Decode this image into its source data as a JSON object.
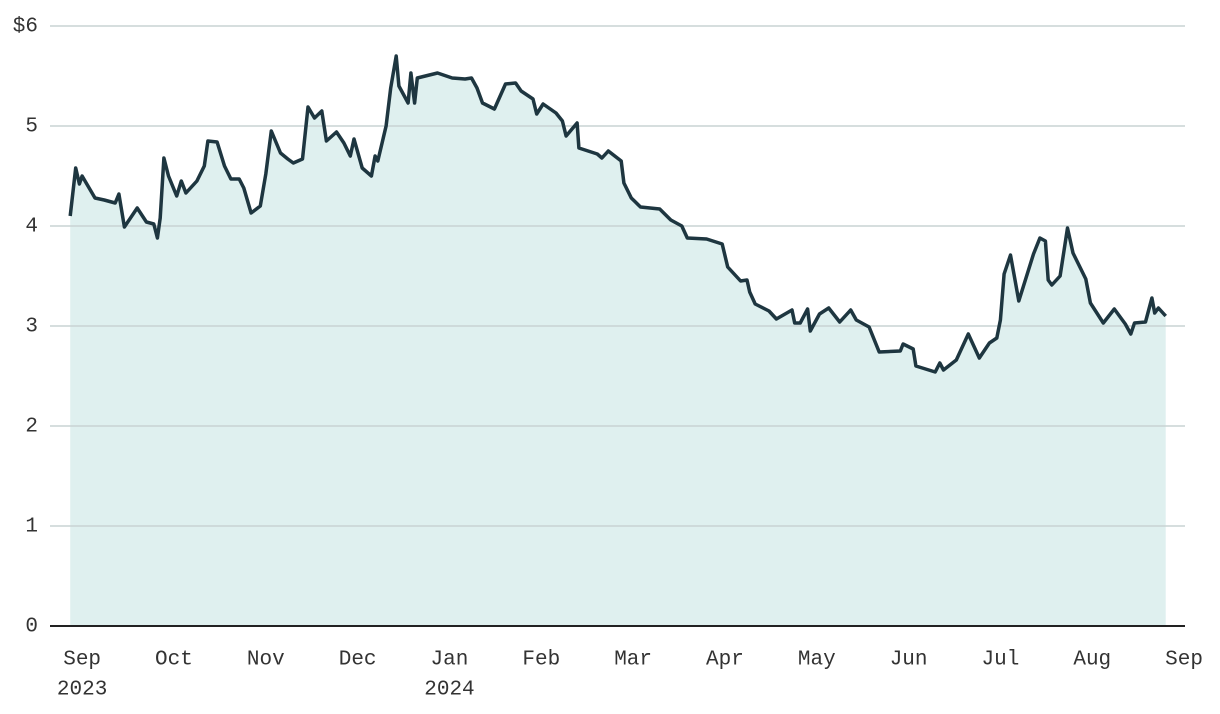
{
  "chart_data": {
    "type": "area",
    "x": [
      -0.13,
      -0.07,
      -0.03,
      0,
      0.14,
      0.24,
      0.36,
      0.4,
      0.46,
      0.6,
      0.7,
      0.78,
      0.82,
      0.85,
      0.89,
      0.94,
      1.03,
      1.08,
      1.13,
      1.25,
      1.33,
      1.37,
      1.47,
      1.55,
      1.62,
      1.71,
      1.76,
      1.84,
      1.94,
      2.0,
      2.06,
      2.16,
      2.24,
      2.3,
      2.4,
      2.46,
      2.53,
      2.61,
      2.66,
      2.77,
      2.85,
      2.92,
      2.96,
      3.05,
      3.15,
      3.19,
      3.22,
      3.31,
      3.36,
      3.42,
      3.45,
      3.55,
      3.58,
      3.62,
      3.65,
      3.87,
      4.03,
      4.17,
      4.24,
      4.3,
      4.36,
      4.49,
      4.61,
      4.72,
      4.78,
      4.91,
      4.95,
      5.02,
      5.16,
      5.23,
      5.27,
      5.39,
      5.41,
      5.61,
      5.66,
      5.73,
      5.87,
      5.9,
      5.98,
      6.08,
      6.29,
      6.41,
      6.53,
      6.59,
      6.8,
      6.97,
      7.03,
      7.17,
      7.24,
      7.27,
      7.33,
      7.48,
      7.56,
      7.73,
      7.76,
      7.82,
      7.9,
      7.93,
      8.03,
      8.13,
      8.25,
      8.37,
      8.43,
      8.57,
      8.68,
      8.91,
      8.94,
      9.05,
      9.08,
      9.29,
      9.34,
      9.38,
      9.52,
      9.65,
      9.77,
      9.88,
      9.96,
      10.0,
      10.04,
      10.11,
      10.2,
      10.36,
      10.43,
      10.49,
      10.52,
      10.56,
      10.65,
      10.73,
      10.79,
      10.93,
      10.98,
      11.12,
      11.24,
      11.36,
      11.42,
      11.46,
      11.58,
      11.65,
      11.68,
      11.72,
      11.8
    ],
    "values": [
      4.1,
      4.58,
      4.42,
      4.5,
      4.28,
      4.26,
      4.23,
      4.32,
      3.99,
      4.18,
      4.04,
      4.02,
      3.88,
      4.08,
      4.68,
      4.5,
      4.3,
      4.45,
      4.33,
      4.45,
      4.6,
      4.85,
      4.84,
      4.6,
      4.47,
      4.47,
      4.38,
      4.13,
      4.2,
      4.52,
      4.95,
      4.73,
      4.67,
      4.63,
      4.67,
      5.19,
      5.08,
      5.15,
      4.85,
      4.94,
      4.83,
      4.7,
      4.87,
      4.58,
      4.5,
      4.7,
      4.65,
      5.0,
      5.38,
      5.7,
      5.4,
      5.23,
      5.53,
      5.23,
      5.48,
      5.53,
      5.48,
      5.47,
      5.48,
      5.38,
      5.23,
      5.17,
      5.42,
      5.43,
      5.35,
      5.27,
      5.12,
      5.22,
      5.13,
      5.05,
      4.9,
      5.03,
      4.78,
      4.72,
      4.68,
      4.75,
      4.65,
      4.43,
      4.28,
      4.19,
      4.17,
      4.06,
      4.0,
      3.88,
      3.87,
      3.82,
      3.59,
      3.45,
      3.46,
      3.34,
      3.22,
      3.15,
      3.07,
      3.16,
      3.03,
      3.03,
      3.17,
      2.95,
      3.12,
      3.18,
      3.04,
      3.16,
      3.06,
      2.99,
      2.74,
      2.75,
      2.82,
      2.77,
      2.6,
      2.54,
      2.63,
      2.56,
      2.66,
      2.92,
      2.68,
      2.83,
      2.88,
      3.06,
      3.52,
      3.71,
      3.25,
      3.72,
      3.88,
      3.85,
      3.46,
      3.41,
      3.5,
      3.98,
      3.73,
      3.47,
      3.23,
      3.03,
      3.17,
      3.02,
      2.92,
      3.03,
      3.04,
      3.28,
      3.13,
      3.18,
      3.1
    ],
    "color": "#1e3640",
    "fill": "#dff0ef",
    "xlim": [
      -0.35,
      12.01
    ],
    "xticks": [
      {
        "value": 0,
        "label": "Sep",
        "sublabel": "2023"
      },
      {
        "value": 1,
        "label": "Oct"
      },
      {
        "value": 2,
        "label": "Nov"
      },
      {
        "value": 3,
        "label": "Dec"
      },
      {
        "value": 4,
        "label": "Jan",
        "sublabel": "2024"
      },
      {
        "value": 5,
        "label": "Feb"
      },
      {
        "value": 6,
        "label": "Mar"
      },
      {
        "value": 7,
        "label": "Apr"
      },
      {
        "value": 8,
        "label": "May"
      },
      {
        "value": 9,
        "label": "Jun"
      },
      {
        "value": 10,
        "label": "Jul"
      },
      {
        "value": 11,
        "label": "Aug"
      },
      {
        "value": 12,
        "label": "Sep"
      }
    ],
    "ylim": [
      0,
      6
    ],
    "yticks": [
      0,
      1,
      2,
      3,
      4,
      5,
      {
        "value": 6,
        "label": "$6"
      }
    ],
    "grid": true
  }
}
